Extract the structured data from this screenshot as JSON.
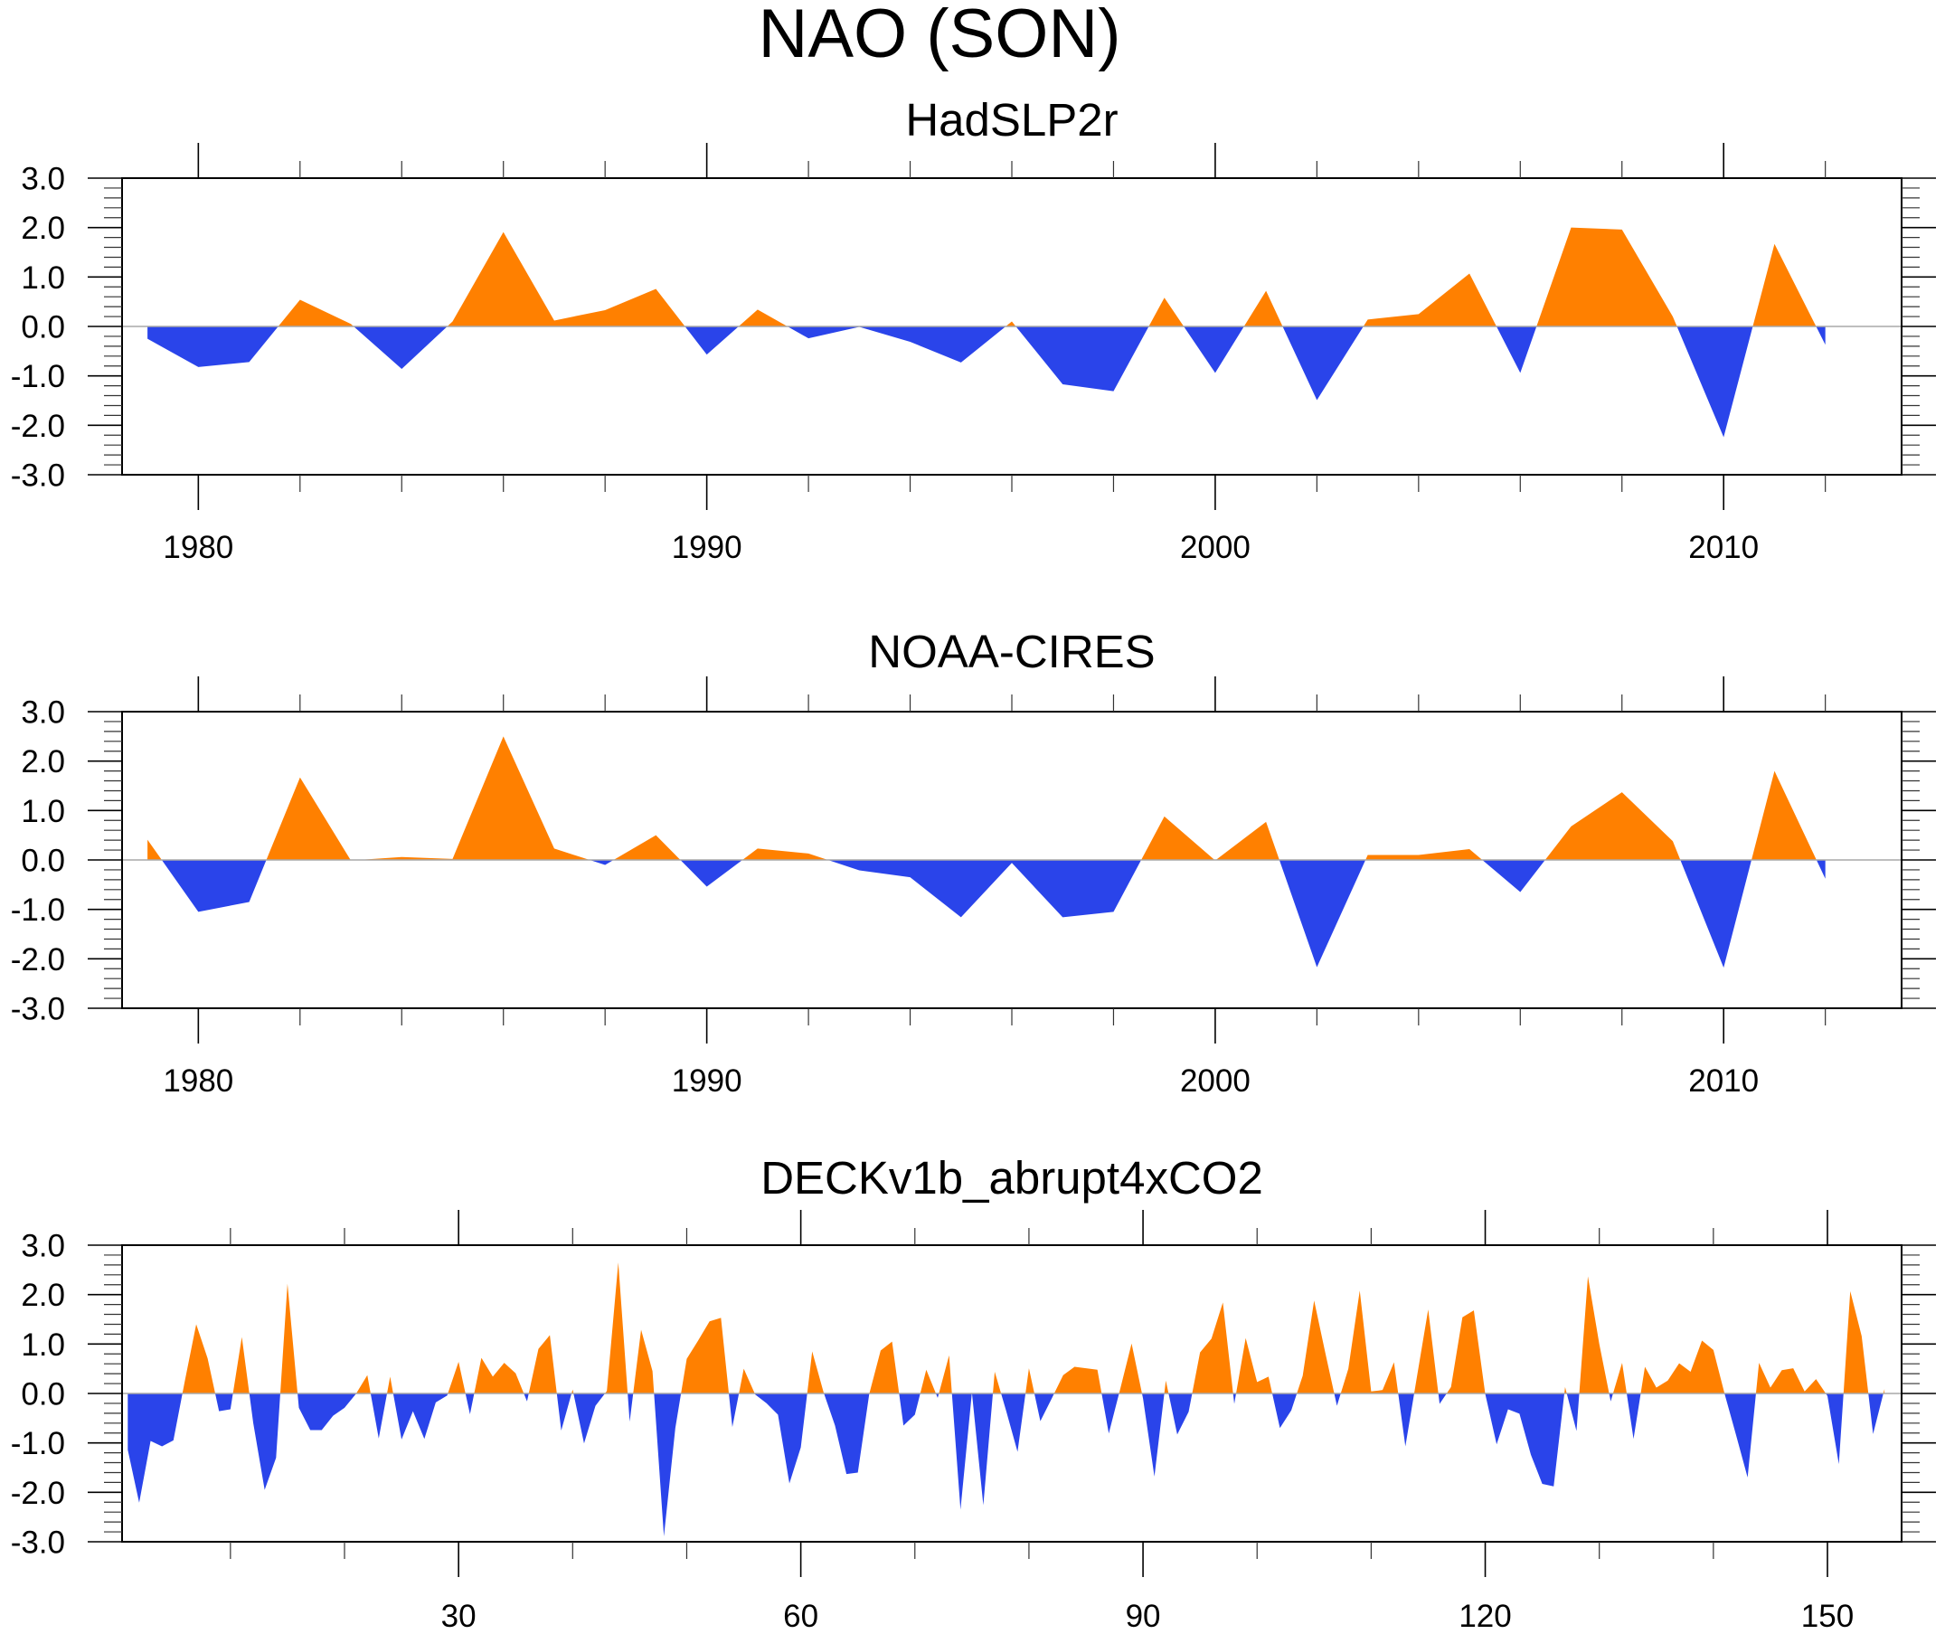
{
  "figure": {
    "title": "NAO (SON)"
  },
  "colors": {
    "positive": "#FF8000",
    "negative": "#2A44EA",
    "zero_line": "#A8A8A8",
    "axis": "#000000"
  },
  "chart_data": [
    {
      "type": "area",
      "title": "HadSLP2r",
      "xlabel": "",
      "ylabel": "",
      "xlim": [
        1978.5,
        2013.5
      ],
      "ylim": [
        -3.0,
        3.0
      ],
      "x_major_ticks": [
        1980,
        1990,
        2000,
        2010
      ],
      "x_tick_labels": [
        "1980",
        "1990",
        "2000",
        "2010"
      ],
      "x_minor_step": 2,
      "y_major_ticks": [
        3.0,
        2.0,
        1.0,
        0.0,
        -1.0,
        -2.0,
        -3.0
      ],
      "y_tick_labels": [
        "3.0",
        "2.0",
        "1.0",
        "0.0",
        "-1.0",
        "-2.0",
        "-3.0"
      ],
      "y_minor_step": 0.2,
      "grid": false,
      "legend": "none",
      "fill_above_zero": "positive",
      "fill_below_zero": "negative",
      "x": [
        1979,
        1980,
        1981,
        1982,
        1983,
        1984,
        1985,
        1986,
        1987,
        1988,
        1989,
        1990,
        1991,
        1992,
        1993,
        1994,
        1995,
        1996,
        1997,
        1998,
        1999,
        2000,
        2001,
        2002,
        2003,
        2004,
        2005,
        2006,
        2007,
        2008,
        2009,
        2010,
        2011,
        2012
      ],
      "values": [
        -0.25,
        -0.82,
        -0.72,
        0.54,
        0.05,
        -0.86,
        0.1,
        1.91,
        0.12,
        0.33,
        0.76,
        -0.57,
        0.34,
        -0.24,
        -0.01,
        -0.31,
        -0.73,
        0.1,
        -1.17,
        -1.31,
        0.58,
        -0.94,
        0.72,
        -1.49,
        0.14,
        0.25,
        1.07,
        -0.94,
        2.0,
        1.96,
        0.2,
        -2.24,
        1.67,
        -0.37
      ]
    },
    {
      "type": "area",
      "title": "NOAA-CIRES",
      "xlabel": "",
      "ylabel": "",
      "xlim": [
        1978.5,
        2013.5
      ],
      "ylim": [
        -3.0,
        3.0
      ],
      "x_major_ticks": [
        1980,
        1990,
        2000,
        2010
      ],
      "x_tick_labels": [
        "1980",
        "1990",
        "2000",
        "2010"
      ],
      "x_minor_step": 2,
      "y_major_ticks": [
        3.0,
        2.0,
        1.0,
        0.0,
        -1.0,
        -2.0,
        -3.0
      ],
      "y_tick_labels": [
        "3.0",
        "2.0",
        "1.0",
        "0.0",
        "-1.0",
        "-2.0",
        "-3.0"
      ],
      "y_minor_step": 0.2,
      "grid": false,
      "legend": "none",
      "fill_above_zero": "positive",
      "fill_below_zero": "negative",
      "x": [
        1979,
        1980,
        1981,
        1982,
        1983,
        1984,
        1985,
        1986,
        1987,
        1988,
        1989,
        1990,
        1991,
        1992,
        1993,
        1994,
        1995,
        1996,
        1997,
        1998,
        1999,
        2000,
        2001,
        2002,
        2003,
        2004,
        2005,
        2006,
        2007,
        2008,
        2009,
        2010,
        2011,
        2012
      ],
      "values": [
        0.41,
        -1.05,
        -0.85,
        1.67,
        -0.01,
        0.06,
        0.02,
        2.5,
        0.23,
        -0.1,
        0.5,
        -0.54,
        0.23,
        0.13,
        -0.21,
        -0.35,
        -1.16,
        -0.06,
        -1.16,
        -1.05,
        0.88,
        -0.01,
        0.77,
        -2.17,
        0.1,
        0.1,
        0.22,
        -0.65,
        0.68,
        1.37,
        0.38,
        -2.18,
        1.8,
        -0.38
      ]
    },
    {
      "type": "area",
      "title": "DECKv1b_abrupt4xCO2",
      "xlabel": "",
      "ylabel": "",
      "xlim": [
        0.5,
        156.5
      ],
      "ylim": [
        -3.0,
        3.0
      ],
      "x_major_ticks": [
        30,
        60,
        90,
        120,
        150
      ],
      "x_tick_labels": [
        "30",
        "60",
        "90",
        "120",
        "150"
      ],
      "x_minor_step": 10,
      "y_major_ticks": [
        3.0,
        2.0,
        1.0,
        0.0,
        -1.0,
        -2.0,
        -3.0
      ],
      "y_tick_labels": [
        "3.0",
        "2.0",
        "1.0",
        "0.0",
        "-1.0",
        "-2.0",
        "-3.0"
      ],
      "y_minor_step": 0.2,
      "grid": false,
      "legend": "none",
      "fill_above_zero": "positive",
      "fill_below_zero": "negative",
      "x_start": 1,
      "x_step": 1,
      "values": [
        -1.14,
        -2.21,
        -0.96,
        -1.07,
        -0.95,
        0.25,
        1.4,
        0.71,
        -0.36,
        -0.32,
        1.14,
        -0.6,
        -1.95,
        -1.3,
        2.22,
        -0.29,
        -0.74,
        -0.74,
        -0.45,
        -0.29,
        -0.01,
        0.37,
        -0.91,
        0.34,
        -0.93,
        -0.36,
        -0.92,
        -0.18,
        -0.04,
        0.64,
        -0.42,
        0.72,
        0.34,
        0.62,
        0.41,
        -0.16,
        0.9,
        1.18,
        -0.75,
        0.08,
        -1.01,
        -0.25,
        0.05,
        2.65,
        -0.57,
        1.29,
        0.45,
        -2.89,
        -0.7,
        0.7,
        1.07,
        1.46,
        1.53,
        -0.68,
        0.5,
        -0.02,
        -0.2,
        -0.43,
        -1.82,
        -1.09,
        0.85,
        0.02,
        -0.65,
        -1.63,
        -1.6,
        -0.01,
        0.87,
        1.05,
        -0.65,
        -0.43,
        0.48,
        -0.09,
        0.77,
        -2.35,
        0.02,
        -2.26,
        0.44,
        -0.35,
        -1.18,
        0.51,
        -0.56,
        -0.1,
        0.37,
        0.54,
        0.51,
        0.48,
        -0.81,
        0.09,
        1.01,
        -0.1,
        -1.68,
        0.26,
        -0.83,
        -0.37,
        0.83,
        1.11,
        1.84,
        -0.21,
        1.12,
        0.23,
        0.34,
        -0.7,
        -0.34,
        0.36,
        1.88,
        0.8,
        -0.25,
        0.5,
        2.08,
        0.04,
        0.07,
        0.63,
        -1.07,
        0.32,
        1.7,
        -0.21,
        0.13,
        1.54,
        1.68,
        -0.01,
        -1.03,
        -0.32,
        -0.41,
        -1.24,
        -1.83,
        -1.88,
        0.13,
        -0.76,
        2.37,
        1.0,
        -0.16,
        0.62,
        -0.92,
        0.54,
        0.12,
        0.26,
        0.61,
        0.44,
        1.07,
        0.88,
        -0.02,
        -0.85,
        -1.7,
        0.62,
        0.12,
        0.47,
        0.51,
        0.04,
        0.29,
        -0.05,
        -1.43,
        2.07,
        1.16,
        -0.82,
        0.09
      ]
    }
  ]
}
